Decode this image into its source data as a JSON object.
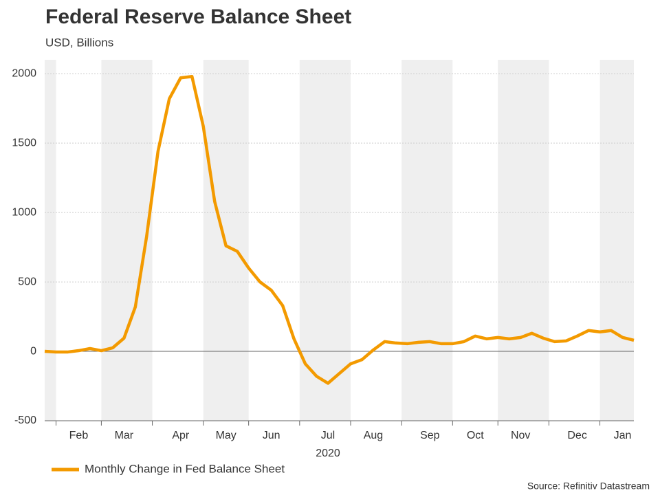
{
  "chart_data": {
    "type": "line",
    "title": "Federal Reserve Balance Sheet",
    "subtitle": "USD, Billions",
    "year_label": "2020",
    "source": "Source: Refinitiv Datastream",
    "categories": [
      null,
      null,
      null,
      "Feb",
      null,
      null,
      null,
      "Mar",
      null,
      null,
      null,
      null,
      "Apr",
      null,
      null,
      null,
      "May",
      null,
      null,
      null,
      "Jun",
      null,
      null,
      null,
      null,
      "Jul",
      null,
      null,
      null,
      "Aug",
      null,
      null,
      null,
      null,
      "Sep",
      null,
      null,
      null,
      "Oct",
      null,
      null,
      null,
      "Nov",
      null,
      null,
      null,
      null,
      "Dec",
      null,
      null,
      null,
      "Jan",
      null
    ],
    "series": [
      {
        "name": "Monthly Change in Fed Balance Sheet",
        "color": "#f39a00",
        "values": [
          0,
          -5,
          -5,
          5,
          20,
          5,
          25,
          95,
          320,
          830,
          1440,
          1820,
          1970,
          1980,
          1620,
          1080,
          760,
          720,
          600,
          500,
          440,
          330,
          90,
          -90,
          -180,
          -230,
          -160,
          -90,
          -60,
          10,
          70,
          60,
          55,
          65,
          70,
          55,
          55,
          70,
          110,
          90,
          100,
          90,
          100,
          130,
          95,
          70,
          75,
          110,
          150,
          140,
          150,
          100,
          80
        ]
      }
    ],
    "ylim": [
      -500,
      2100
    ],
    "yticks": [
      -500,
      0,
      500,
      1000,
      1500,
      2000
    ],
    "grid": true,
    "legend": "bottom-left"
  }
}
